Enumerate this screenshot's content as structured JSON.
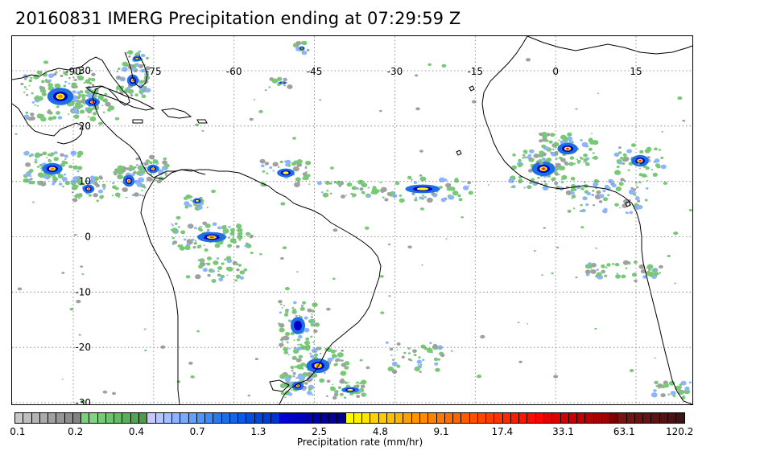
{
  "title": "20160831 IMERG Precipitation ending at 07:29:59 Z",
  "map": {
    "lon_labels": [
      "-90",
      "-75",
      "-60",
      "-45",
      "-30",
      "-15",
      "0",
      "15"
    ],
    "lon_values": [
      -90,
      -75,
      -60,
      -45,
      -30,
      -15,
      0,
      15
    ],
    "lat_labels": [
      "30",
      "20",
      "10",
      "0",
      "-10",
      "-20",
      "-30"
    ],
    "lat_values": [
      30,
      20,
      10,
      0,
      -10,
      -20,
      -30
    ],
    "grid": "dotted",
    "coastline_color": "#000000"
  },
  "colorbar": {
    "label": "Precipitation rate (mm/hr)",
    "tick_labels": [
      "0.1",
      "0.2",
      "0.4",
      "0.7",
      "1.3",
      "2.5",
      "4.8",
      "9.1",
      "17.4",
      "33.1",
      "63.1",
      "120.2"
    ],
    "colors": [
      "#c8c8c8",
      "#bebebe",
      "#b4b4b4",
      "#aaaaaa",
      "#a0a0a0",
      "#969696",
      "#8c8c8c",
      "#828282",
      "#78d278",
      "#82d282",
      "#78c878",
      "#6ec36e",
      "#64b964",
      "#5aaf5a",
      "#50a550",
      "#4b9b4b",
      "#c8c8ff",
      "#b4c8ff",
      "#a0c0ff",
      "#8cb4ff",
      "#78aaff",
      "#64a0ff",
      "#5096ff",
      "#3c8cff",
      "#2878f0",
      "#1e6ee6",
      "#1464e6",
      "#0a5ae6",
      "#0050dc",
      "#0046dc",
      "#003cdc",
      "#0032dc",
      "#0000d2",
      "#0000c8",
      "#0000be",
      "#0000b4",
      "#0000aa",
      "#0000a0",
      "#000096",
      "#00008c",
      "#ffff00",
      "#fff000",
      "#ffe600",
      "#ffd200",
      "#ffc800",
      "#ffbe00",
      "#ffb400",
      "#ffa000",
      "#ff9600",
      "#ff8c00",
      "#ff8200",
      "#ff7800",
      "#ff6e00",
      "#ff6400",
      "#ff5a00",
      "#ff5000",
      "#ff4600",
      "#ff3c00",
      "#ff3200",
      "#ff2800",
      "#ff1e00",
      "#ff1400",
      "#ff0a00",
      "#ff0000",
      "#e60000",
      "#dc0000",
      "#d20000",
      "#c80000",
      "#be0000",
      "#b40000",
      "#aa0000",
      "#a00000",
      "#7d0000",
      "#781414",
      "#701414",
      "#6a1414",
      "#641414",
      "#5a1414",
      "#501414",
      "#461414",
      "#3c1414"
    ]
  },
  "precip_colors": {
    "gray": "#a0a0a0",
    "green": "#78c878",
    "light_blue": "#8cb4ff",
    "blue": "#1e6ee6",
    "dark_blue": "#0000c8",
    "yellow": "#ffff00",
    "orange": "#ff8c00",
    "red": "#ff1e00",
    "dark_red": "#a00000"
  }
}
